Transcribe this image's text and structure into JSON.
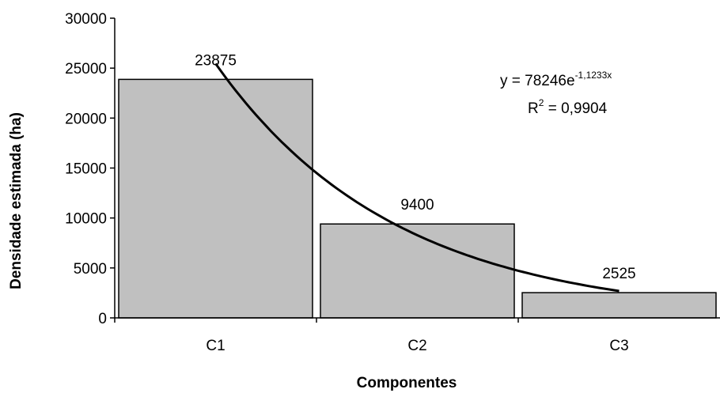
{
  "chart_data": {
    "type": "bar",
    "title": "",
    "xlabel": "Componentes",
    "ylabel": "Densidade estimada (ha)",
    "categories": [
      "C1",
      "C2",
      "C3"
    ],
    "values": [
      23875,
      9400,
      2525
    ],
    "data_labels": [
      "23875",
      "9400",
      "2525"
    ],
    "ylim": [
      0,
      30000
    ],
    "yticks": [
      0,
      5000,
      10000,
      15000,
      20000,
      25000,
      30000
    ],
    "ytick_labels": [
      "0",
      "5000",
      "10000",
      "15000",
      "20000",
      "25000",
      "30000"
    ],
    "grid": false,
    "legend": "none",
    "bar_color": "#c0c0c0",
    "trendline": {
      "type": "exponential",
      "a": 78246,
      "b": -1.1233,
      "equation_prefix": "y = 78246e",
      "equation_exponent": "-1,1233x",
      "r2_prefix": "R",
      "r2_exponent": "2",
      "r2_value": " = 0,9904"
    }
  }
}
